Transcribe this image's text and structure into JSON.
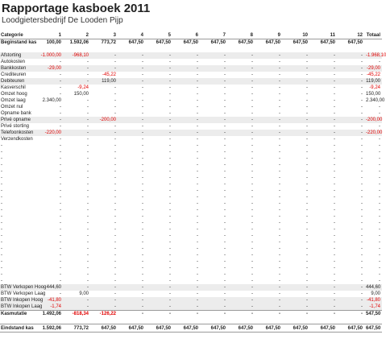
{
  "title": "Rapportage kasboek 2011",
  "subtitle": "Loodgietersbedrijf De Looden Pijp",
  "colors": {
    "negative": "#e00000",
    "shade": "#ececec"
  },
  "headers": [
    "Categorie",
    "1",
    "2",
    "3",
    "4",
    "5",
    "6",
    "7",
    "8",
    "9",
    "10",
    "11",
    "12",
    "Totaal"
  ],
  "rows": [
    {
      "type": "begin",
      "cells": [
        "Beginstand kas",
        "100,00",
        "1.592,06",
        "773,72",
        "647,50",
        "647,50",
        "647,50",
        "647,50",
        "647,50",
        "647,50",
        "647,50",
        "647,50",
        "647,50",
        ""
      ]
    },
    {
      "type": "blank",
      "cells": [
        "",
        "",
        "",
        "",
        "",
        "",
        "",
        "",
        "",
        "",
        "",
        "",
        "",
        ""
      ]
    },
    {
      "type": "data",
      "shade": true,
      "cells": [
        "Afstorting",
        "-1.000,00",
        "-968,10",
        "-",
        "-",
        "-",
        "-",
        "-",
        "-",
        "-",
        "-",
        "-",
        "-",
        "-1.968,10"
      ]
    },
    {
      "type": "data",
      "shade": false,
      "cells": [
        "Autokosten",
        "-",
        "-",
        "-",
        "-",
        "-",
        "-",
        "-",
        "-",
        "-",
        "-",
        "-",
        "-",
        "-"
      ]
    },
    {
      "type": "data",
      "shade": true,
      "cells": [
        "Bankkosten",
        "-29,00",
        "-",
        "-",
        "-",
        "-",
        "-",
        "-",
        "-",
        "-",
        "-",
        "-",
        "-",
        "-29,00"
      ]
    },
    {
      "type": "data",
      "shade": false,
      "cells": [
        "Crediteuren",
        "-",
        "-",
        "-45,22",
        "-",
        "-",
        "-",
        "-",
        "-",
        "-",
        "-",
        "-",
        "-",
        "-45,22"
      ]
    },
    {
      "type": "data",
      "shade": true,
      "cells": [
        "Debiteuren",
        "-",
        "-",
        "119,00",
        "-",
        "-",
        "-",
        "-",
        "-",
        "-",
        "-",
        "-",
        "-",
        "119,00"
      ]
    },
    {
      "type": "data",
      "shade": false,
      "cells": [
        "Kasverschil",
        "-",
        "-9,24",
        "-",
        "-",
        "-",
        "-",
        "-",
        "-",
        "-",
        "-",
        "-",
        "-",
        "-9,24"
      ]
    },
    {
      "type": "data",
      "shade": false,
      "cells": [
        "Omzet hoog",
        "-",
        "150,00",
        "-",
        "-",
        "-",
        "-",
        "-",
        "-",
        "-",
        "-",
        "-",
        "-",
        "150,00"
      ]
    },
    {
      "type": "data",
      "shade": false,
      "cells": [
        "Omzet laag",
        "2.340,00",
        "-",
        "-",
        "-",
        "-",
        "-",
        "-",
        "-",
        "-",
        "-",
        "-",
        "-",
        "2.340,00"
      ]
    },
    {
      "type": "data",
      "shade": false,
      "cells": [
        "Omzet nul",
        "-",
        "-",
        "-",
        "-",
        "-",
        "-",
        "-",
        "-",
        "-",
        "-",
        "-",
        "-",
        "-"
      ]
    },
    {
      "type": "data",
      "shade": false,
      "cells": [
        "Opname bank",
        "-",
        "-",
        "-",
        "-",
        "-",
        "-",
        "-",
        "-",
        "-",
        "-",
        "-",
        "-",
        "-"
      ]
    },
    {
      "type": "data",
      "shade": true,
      "cells": [
        "Privé opname",
        "-",
        "-",
        "-200,00",
        "-",
        "-",
        "-",
        "-",
        "-",
        "-",
        "-",
        "-",
        "-",
        "-200,00"
      ]
    },
    {
      "type": "data",
      "shade": false,
      "cells": [
        "Privé storting",
        "-",
        "-",
        "-",
        "-",
        "-",
        "-",
        "-",
        "-",
        "-",
        "-",
        "-",
        "-",
        "-"
      ]
    },
    {
      "type": "data",
      "shade": true,
      "cells": [
        "Telefoonkosten",
        "-220,00",
        "-",
        "-",
        "-",
        "-",
        "-",
        "-",
        "-",
        "-",
        "-",
        "-",
        "-",
        "-220,00"
      ]
    },
    {
      "type": "data",
      "shade": false,
      "cells": [
        "Verzendkosten",
        "-",
        "-",
        "-",
        "-",
        "-",
        "-",
        "-",
        "-",
        "-",
        "-",
        "-",
        "-",
        "-"
      ]
    },
    {
      "type": "data",
      "shade": false,
      "cells": [
        "-",
        "-",
        "-",
        "-",
        "-",
        "-",
        "-",
        "-",
        "-",
        "-",
        "-",
        "-",
        "-",
        "-"
      ]
    },
    {
      "type": "data",
      "shade": false,
      "cells": [
        "-",
        "-",
        "-",
        "-",
        "-",
        "-",
        "-",
        "-",
        "-",
        "-",
        "-",
        "-",
        "-",
        "-"
      ]
    },
    {
      "type": "data",
      "shade": false,
      "cells": [
        "-",
        "-",
        "-",
        "-",
        "-",
        "-",
        "-",
        "-",
        "-",
        "-",
        "-",
        "-",
        "-",
        "-"
      ]
    },
    {
      "type": "data",
      "shade": false,
      "cells": [
        "-",
        "-",
        "-",
        "-",
        "-",
        "-",
        "-",
        "-",
        "-",
        "-",
        "-",
        "-",
        "-",
        "-"
      ]
    },
    {
      "type": "data",
      "shade": false,
      "cells": [
        "-",
        "-",
        "-",
        "-",
        "-",
        "-",
        "-",
        "-",
        "-",
        "-",
        "-",
        "-",
        "-",
        "-"
      ]
    },
    {
      "type": "data",
      "shade": false,
      "cells": [
        "-",
        "-",
        "-",
        "-",
        "-",
        "-",
        "-",
        "-",
        "-",
        "-",
        "-",
        "-",
        "-",
        "-"
      ]
    },
    {
      "type": "data",
      "shade": false,
      "cells": [
        "-",
        "-",
        "-",
        "-",
        "-",
        "-",
        "-",
        "-",
        "-",
        "-",
        "-",
        "-",
        "-",
        "-"
      ]
    },
    {
      "type": "data",
      "shade": false,
      "cells": [
        "-",
        "-",
        "-",
        "-",
        "-",
        "-",
        "-",
        "-",
        "-",
        "-",
        "-",
        "-",
        "-",
        "-"
      ]
    },
    {
      "type": "data",
      "shade": false,
      "cells": [
        "-",
        "-",
        "-",
        "-",
        "-",
        "-",
        "-",
        "-",
        "-",
        "-",
        "-",
        "-",
        "-",
        "-"
      ]
    },
    {
      "type": "data",
      "shade": false,
      "cells": [
        "-",
        "-",
        "-",
        "-",
        "-",
        "-",
        "-",
        "-",
        "-",
        "-",
        "-",
        "-",
        "-",
        "-"
      ]
    },
    {
      "type": "data",
      "shade": false,
      "cells": [
        "-",
        "-",
        "-",
        "-",
        "-",
        "-",
        "-",
        "-",
        "-",
        "-",
        "-",
        "-",
        "-",
        "-"
      ]
    },
    {
      "type": "data",
      "shade": false,
      "cells": [
        "-",
        "-",
        "-",
        "-",
        "-",
        "-",
        "-",
        "-",
        "-",
        "-",
        "-",
        "-",
        "-",
        "-"
      ]
    },
    {
      "type": "data",
      "shade": false,
      "cells": [
        "-",
        "-",
        "-",
        "-",
        "-",
        "-",
        "-",
        "-",
        "-",
        "-",
        "-",
        "-",
        "-",
        "-"
      ]
    },
    {
      "type": "data",
      "shade": false,
      "cells": [
        "-",
        "-",
        "-",
        "-",
        "-",
        "-",
        "-",
        "-",
        "-",
        "-",
        "-",
        "-",
        "-",
        "-"
      ]
    },
    {
      "type": "data",
      "shade": false,
      "cells": [
        "-",
        "-",
        "-",
        "-",
        "-",
        "-",
        "-",
        "-",
        "-",
        "-",
        "-",
        "-",
        "-",
        "-"
      ]
    },
    {
      "type": "data",
      "shade": false,
      "cells": [
        "-",
        "-",
        "-",
        "-",
        "-",
        "-",
        "-",
        "-",
        "-",
        "-",
        "-",
        "-",
        "-",
        "-"
      ]
    },
    {
      "type": "data",
      "shade": false,
      "cells": [
        "-",
        "-",
        "-",
        "-",
        "-",
        "-",
        "-",
        "-",
        "-",
        "-",
        "-",
        "-",
        "-",
        "-"
      ]
    },
    {
      "type": "data",
      "shade": false,
      "cells": [
        "-",
        "-",
        "-",
        "-",
        "-",
        "-",
        "-",
        "-",
        "-",
        "-",
        "-",
        "-",
        "-",
        "-"
      ]
    },
    {
      "type": "data",
      "shade": false,
      "cells": [
        "-",
        "-",
        "-",
        "-",
        "-",
        "-",
        "-",
        "-",
        "-",
        "-",
        "-",
        "-",
        "-",
        "-"
      ]
    },
    {
      "type": "data",
      "shade": false,
      "cells": [
        "-",
        "-",
        "-",
        "-",
        "-",
        "-",
        "-",
        "-",
        "-",
        "-",
        "-",
        "-",
        "-",
        "-"
      ]
    },
    {
      "type": "data",
      "shade": false,
      "cells": [
        "-",
        "-",
        "-",
        "-",
        "-",
        "-",
        "-",
        "-",
        "-",
        "-",
        "-",
        "-",
        "-",
        "-"
      ]
    },
    {
      "type": "data",
      "shade": false,
      "cells": [
        "-",
        "-",
        "-",
        "-",
        "-",
        "-",
        "-",
        "-",
        "-",
        "-",
        "-",
        "-",
        "-",
        "-"
      ]
    },
    {
      "type": "data",
      "shade": true,
      "cells": [
        "BTW Verkopen Hoog",
        "444,60",
        "-",
        "-",
        "-",
        "-",
        "-",
        "-",
        "-",
        "-",
        "-",
        "-",
        "-",
        "444,60"
      ]
    },
    {
      "type": "data",
      "shade": false,
      "cells": [
        "BTW Verkopen Laag",
        "-",
        "9,00",
        "-",
        "-",
        "-",
        "-",
        "-",
        "-",
        "-",
        "-",
        "-",
        "-",
        "9,00"
      ]
    },
    {
      "type": "data",
      "shade": true,
      "cells": [
        "BTW Inkopen Hoog",
        "-41,80",
        "-",
        "-",
        "-",
        "-",
        "-",
        "-",
        "-",
        "-",
        "-",
        "-",
        "-",
        "-41,80"
      ]
    },
    {
      "type": "data",
      "shade": true,
      "cells": [
        "BTW Inkopen Laag",
        "-1,74",
        "-",
        "-",
        "-",
        "-",
        "-",
        "-",
        "-",
        "-",
        "-",
        "-",
        "-",
        "-1,74"
      ]
    },
    {
      "type": "total",
      "cells": [
        "Kasmutatie",
        "1.492,06",
        "-818,34",
        "-126,22",
        "-",
        "-",
        "-",
        "-",
        "-",
        "-",
        "-",
        "-",
        "-",
        "547,50"
      ]
    },
    {
      "type": "blank",
      "cells": [
        "",
        "",
        "",
        "",
        "",
        "",
        "",
        "",
        "",
        "",
        "",
        "",
        "",
        ""
      ]
    },
    {
      "type": "end",
      "cells": [
        "Eindstand kas",
        "1.592,06",
        "773,72",
        "647,50",
        "647,50",
        "647,50",
        "647,50",
        "647,50",
        "647,50",
        "647,50",
        "647,50",
        "647,50",
        "647,50",
        "647,50"
      ]
    }
  ]
}
